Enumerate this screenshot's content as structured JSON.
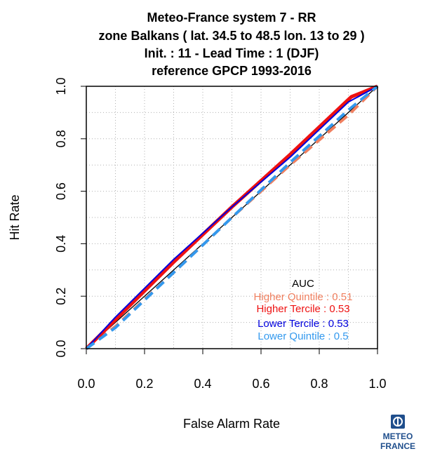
{
  "chart_data": {
    "type": "line",
    "title_lines": [
      "Meteo-France system 7  -  RR",
      "zone Balkans ( lat. 34.5 to 48.5    lon. 13 to 29 )",
      "Init. : 11  - Lead Time : 1 (DJF)",
      "reference GPCP 1993-2016"
    ],
    "xlabel": "False Alarm Rate",
    "ylabel": "Hit Rate",
    "xlim": [
      0,
      1
    ],
    "ylim": [
      0,
      1
    ],
    "x_ticks": [
      "0.0",
      "0.2",
      "0.4",
      "0.6",
      "0.8",
      "1.0"
    ],
    "y_ticks": [
      "0.0",
      "0.2",
      "0.4",
      "0.6",
      "0.8",
      "1.0"
    ],
    "grid": true,
    "legend_position": "bottom-right",
    "legend_title": "AUC",
    "series": [
      {
        "name": "Higher Quintile : 0.51",
        "color": "#f08060",
        "dash": true,
        "width": 4,
        "points": [
          [
            0,
            0
          ],
          [
            0.1,
            0.085
          ],
          [
            0.3,
            0.29
          ],
          [
            0.5,
            0.5
          ],
          [
            0.7,
            0.7
          ],
          [
            0.9,
            0.89
          ],
          [
            1,
            1
          ]
        ]
      },
      {
        "name": "Higher Tercile : 0.53",
        "color": "#ee1111",
        "dash": false,
        "width": 5,
        "points": [
          [
            0,
            0
          ],
          [
            0.1,
            0.11
          ],
          [
            0.3,
            0.33
          ],
          [
            0.5,
            0.54
          ],
          [
            0.7,
            0.74
          ],
          [
            0.91,
            0.96
          ],
          [
            1,
            1
          ]
        ]
      },
      {
        "name": "Lower Tercile : 0.53",
        "color": "#0000dd",
        "dash": false,
        "width": 2,
        "points": [
          [
            0,
            0
          ],
          [
            0.1,
            0.12
          ],
          [
            0.3,
            0.34
          ],
          [
            0.5,
            0.54
          ],
          [
            0.7,
            0.73
          ],
          [
            0.9,
            0.94
          ],
          [
            1,
            1
          ]
        ]
      },
      {
        "name": "Lower Quintile : 0.5",
        "color": "#3399ee",
        "dash": true,
        "width": 4,
        "points": [
          [
            0,
            0
          ],
          [
            0.1,
            0.08
          ],
          [
            0.3,
            0.29
          ],
          [
            0.5,
            0.5
          ],
          [
            0.7,
            0.71
          ],
          [
            0.9,
            0.91
          ],
          [
            1,
            1
          ]
        ]
      }
    ],
    "reference_line": {
      "color": "#000000",
      "points": [
        [
          0,
          0
        ],
        [
          1,
          1
        ]
      ]
    }
  },
  "logo": {
    "line1": "METEO",
    "line2": "FRANCE",
    "color": "#1f4e8c"
  }
}
